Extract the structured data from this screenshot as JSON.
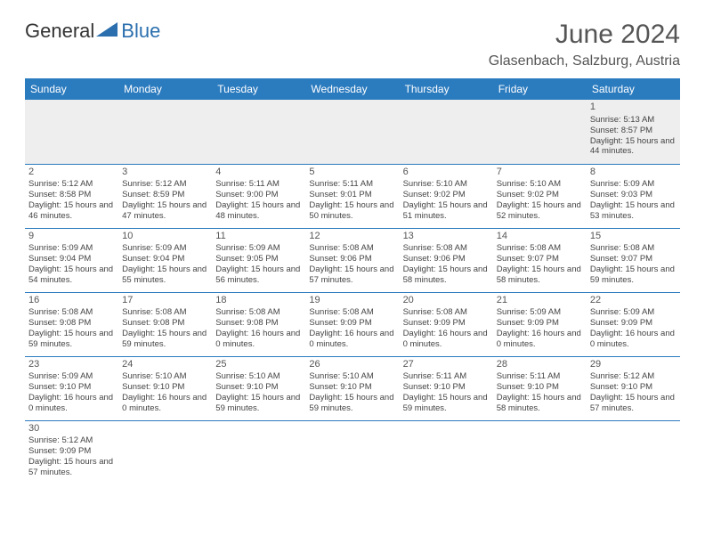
{
  "logo": {
    "part1": "General",
    "part2": "Blue"
  },
  "title": "June 2024",
  "location": "Glasenbach, Salzburg, Austria",
  "colors": {
    "header_bg": "#2b7bbf",
    "header_text": "#ffffff",
    "logo_blue": "#2b6fae",
    "cell_border": "#2b7bbf",
    "firstrow_bg": "#eeeeee",
    "body_text": "#444444"
  },
  "weekdays": [
    "Sunday",
    "Monday",
    "Tuesday",
    "Wednesday",
    "Thursday",
    "Friday",
    "Saturday"
  ],
  "weeks": [
    [
      null,
      null,
      null,
      null,
      null,
      null,
      {
        "n": "1",
        "sr": "Sunrise: 5:13 AM",
        "ss": "Sunset: 8:57 PM",
        "dl": "Daylight: 15 hours and 44 minutes."
      }
    ],
    [
      {
        "n": "2",
        "sr": "Sunrise: 5:12 AM",
        "ss": "Sunset: 8:58 PM",
        "dl": "Daylight: 15 hours and 46 minutes."
      },
      {
        "n": "3",
        "sr": "Sunrise: 5:12 AM",
        "ss": "Sunset: 8:59 PM",
        "dl": "Daylight: 15 hours and 47 minutes."
      },
      {
        "n": "4",
        "sr": "Sunrise: 5:11 AM",
        "ss": "Sunset: 9:00 PM",
        "dl": "Daylight: 15 hours and 48 minutes."
      },
      {
        "n": "5",
        "sr": "Sunrise: 5:11 AM",
        "ss": "Sunset: 9:01 PM",
        "dl": "Daylight: 15 hours and 50 minutes."
      },
      {
        "n": "6",
        "sr": "Sunrise: 5:10 AM",
        "ss": "Sunset: 9:02 PM",
        "dl": "Daylight: 15 hours and 51 minutes."
      },
      {
        "n": "7",
        "sr": "Sunrise: 5:10 AM",
        "ss": "Sunset: 9:02 PM",
        "dl": "Daylight: 15 hours and 52 minutes."
      },
      {
        "n": "8",
        "sr": "Sunrise: 5:09 AM",
        "ss": "Sunset: 9:03 PM",
        "dl": "Daylight: 15 hours and 53 minutes."
      }
    ],
    [
      {
        "n": "9",
        "sr": "Sunrise: 5:09 AM",
        "ss": "Sunset: 9:04 PM",
        "dl": "Daylight: 15 hours and 54 minutes."
      },
      {
        "n": "10",
        "sr": "Sunrise: 5:09 AM",
        "ss": "Sunset: 9:04 PM",
        "dl": "Daylight: 15 hours and 55 minutes."
      },
      {
        "n": "11",
        "sr": "Sunrise: 5:09 AM",
        "ss": "Sunset: 9:05 PM",
        "dl": "Daylight: 15 hours and 56 minutes."
      },
      {
        "n": "12",
        "sr": "Sunrise: 5:08 AM",
        "ss": "Sunset: 9:06 PM",
        "dl": "Daylight: 15 hours and 57 minutes."
      },
      {
        "n": "13",
        "sr": "Sunrise: 5:08 AM",
        "ss": "Sunset: 9:06 PM",
        "dl": "Daylight: 15 hours and 58 minutes."
      },
      {
        "n": "14",
        "sr": "Sunrise: 5:08 AM",
        "ss": "Sunset: 9:07 PM",
        "dl": "Daylight: 15 hours and 58 minutes."
      },
      {
        "n": "15",
        "sr": "Sunrise: 5:08 AM",
        "ss": "Sunset: 9:07 PM",
        "dl": "Daylight: 15 hours and 59 minutes."
      }
    ],
    [
      {
        "n": "16",
        "sr": "Sunrise: 5:08 AM",
        "ss": "Sunset: 9:08 PM",
        "dl": "Daylight: 15 hours and 59 minutes."
      },
      {
        "n": "17",
        "sr": "Sunrise: 5:08 AM",
        "ss": "Sunset: 9:08 PM",
        "dl": "Daylight: 15 hours and 59 minutes."
      },
      {
        "n": "18",
        "sr": "Sunrise: 5:08 AM",
        "ss": "Sunset: 9:08 PM",
        "dl": "Daylight: 16 hours and 0 minutes."
      },
      {
        "n": "19",
        "sr": "Sunrise: 5:08 AM",
        "ss": "Sunset: 9:09 PM",
        "dl": "Daylight: 16 hours and 0 minutes."
      },
      {
        "n": "20",
        "sr": "Sunrise: 5:08 AM",
        "ss": "Sunset: 9:09 PM",
        "dl": "Daylight: 16 hours and 0 minutes."
      },
      {
        "n": "21",
        "sr": "Sunrise: 5:09 AM",
        "ss": "Sunset: 9:09 PM",
        "dl": "Daylight: 16 hours and 0 minutes."
      },
      {
        "n": "22",
        "sr": "Sunrise: 5:09 AM",
        "ss": "Sunset: 9:09 PM",
        "dl": "Daylight: 16 hours and 0 minutes."
      }
    ],
    [
      {
        "n": "23",
        "sr": "Sunrise: 5:09 AM",
        "ss": "Sunset: 9:10 PM",
        "dl": "Daylight: 16 hours and 0 minutes."
      },
      {
        "n": "24",
        "sr": "Sunrise: 5:10 AM",
        "ss": "Sunset: 9:10 PM",
        "dl": "Daylight: 16 hours and 0 minutes."
      },
      {
        "n": "25",
        "sr": "Sunrise: 5:10 AM",
        "ss": "Sunset: 9:10 PM",
        "dl": "Daylight: 15 hours and 59 minutes."
      },
      {
        "n": "26",
        "sr": "Sunrise: 5:10 AM",
        "ss": "Sunset: 9:10 PM",
        "dl": "Daylight: 15 hours and 59 minutes."
      },
      {
        "n": "27",
        "sr": "Sunrise: 5:11 AM",
        "ss": "Sunset: 9:10 PM",
        "dl": "Daylight: 15 hours and 59 minutes."
      },
      {
        "n": "28",
        "sr": "Sunrise: 5:11 AM",
        "ss": "Sunset: 9:10 PM",
        "dl": "Daylight: 15 hours and 58 minutes."
      },
      {
        "n": "29",
        "sr": "Sunrise: 5:12 AM",
        "ss": "Sunset: 9:10 PM",
        "dl": "Daylight: 15 hours and 57 minutes."
      }
    ],
    [
      {
        "n": "30",
        "sr": "Sunrise: 5:12 AM",
        "ss": "Sunset: 9:09 PM",
        "dl": "Daylight: 15 hours and 57 minutes."
      },
      null,
      null,
      null,
      null,
      null,
      null
    ]
  ]
}
